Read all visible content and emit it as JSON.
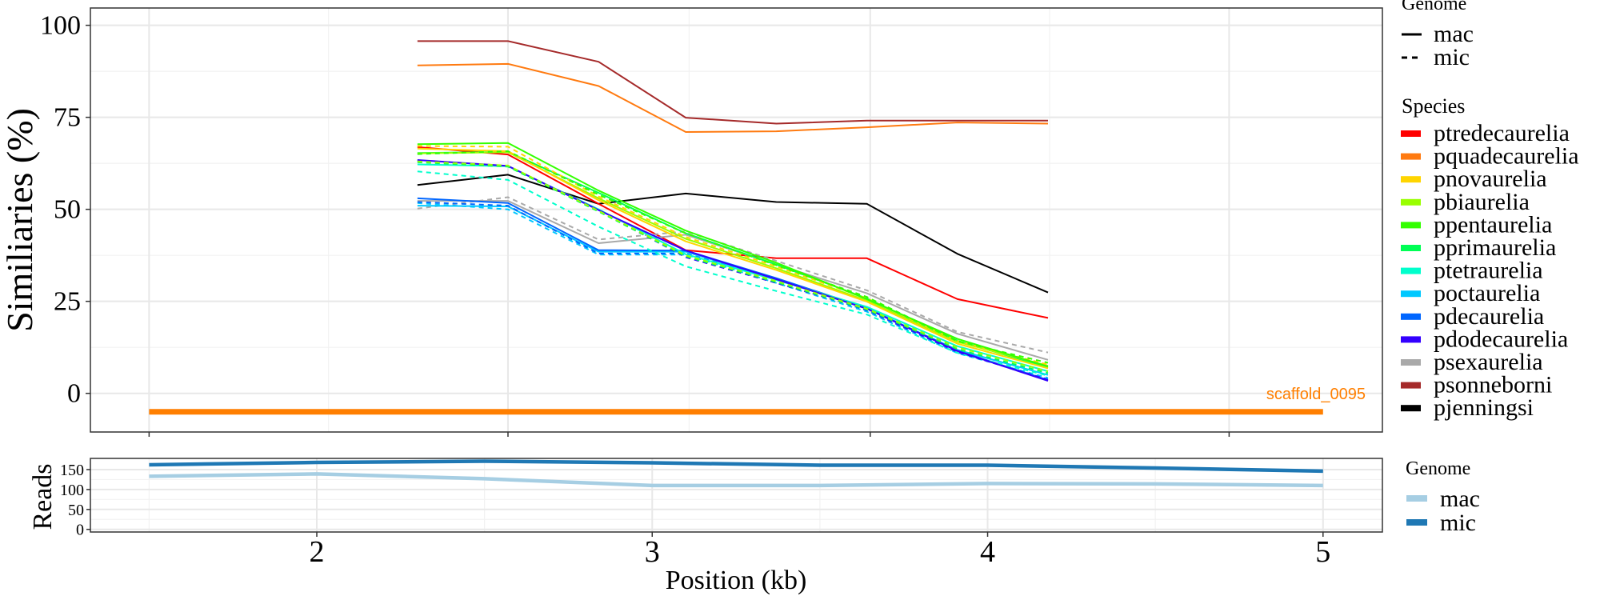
{
  "chart_data": [
    {
      "type": "line",
      "ylabel": "Similiaries (%)",
      "xlabel": "",
      "ylim": [
        -10.5,
        104.7
      ],
      "xlim": [
        1.325,
        5.177
      ],
      "yticks": [
        0,
        25,
        50,
        75,
        100
      ],
      "x_gridlines_unlabeled": [
        1.5,
        2.57,
        3.65,
        4.72
      ],
      "grid": true,
      "x": [
        2.3,
        2.57,
        2.84,
        3.1,
        3.37,
        3.64,
        3.91,
        4.18
      ],
      "annotation": {
        "text": "scaffold_0095",
        "y": -5,
        "x_start": 1.5,
        "x_end": 5.0,
        "color": "#FF7F00"
      },
      "legend_position": "right",
      "linetype_legend": {
        "title": "Genome",
        "items": [
          {
            "label": "mac",
            "dash": "solid"
          },
          {
            "label": "mic",
            "dash": "dashed"
          }
        ]
      },
      "color_legend": {
        "title": "Species",
        "items": [
          {
            "label": "ptredecaurelia",
            "color": "#FF0000"
          },
          {
            "label": "pquadecaurelia",
            "color": "#FF7A10"
          },
          {
            "label": "pnovaurelia",
            "color": "#FFD500"
          },
          {
            "label": "pbiaurelia",
            "color": "#99FF00"
          },
          {
            "label": "ppentaurelia",
            "color": "#33FF00"
          },
          {
            "label": "pprimaurelia",
            "color": "#00FF55"
          },
          {
            "label": "ptetraurelia",
            "color": "#00FFCC"
          },
          {
            "label": "poctaurelia",
            "color": "#00C8FF"
          },
          {
            "label": "pdecaurelia",
            "color": "#0066FF"
          },
          {
            "label": "pdodecaurelia",
            "color": "#3300FF"
          },
          {
            "label": "psexaurelia",
            "color": "#A9A9A9"
          },
          {
            "label": "psonneborni",
            "color": "#A52A2A"
          },
          {
            "label": "pjenningsi",
            "color": "#000000"
          }
        ]
      },
      "series": [
        {
          "species": "psonneborni",
          "genome": "mac",
          "values": [
            95.7,
            95.7,
            90.1,
            74.9,
            73.3,
            74.1,
            74.1,
            74.1
          ]
        },
        {
          "species": "pquadecaurelia",
          "genome": "mac",
          "values": [
            89.1,
            89.5,
            83.5,
            71.0,
            71.2,
            72.3,
            73.6,
            73.3
          ]
        },
        {
          "species": "pjenningsi",
          "genome": "mac",
          "values": [
            56.6,
            59.4,
            51.5,
            54.3,
            52.0,
            51.5,
            37.9,
            27.4
          ]
        },
        {
          "species": "ptredecaurelia",
          "genome": "mac",
          "values": [
            66.9,
            64.9,
            51.5,
            38.9,
            36.7,
            36.7,
            25.6,
            20.5
          ]
        },
        {
          "species": "psexaurelia",
          "genome": "mac",
          "values": [
            52.3,
            52.3,
            40.8,
            43.1,
            35.0,
            27.2,
            16.2,
            9.1
          ]
        },
        {
          "species": "psexaurelia",
          "genome": "mic",
          "values": [
            50.2,
            53.3,
            41.8,
            44.0,
            36.0,
            28.0,
            16.7,
            11.1
          ]
        },
        {
          "species": "poctaurelia",
          "genome": "mac",
          "values": [
            51.0,
            50.8,
            38.5,
            38.5,
            31.0,
            23.0,
            11.8,
            5.0
          ]
        },
        {
          "species": "poctaurelia",
          "genome": "mic",
          "values": [
            51.7,
            50.0,
            37.7,
            37.7,
            30.0,
            22.2,
            10.9,
            4.2
          ]
        },
        {
          "species": "pdecaurelia",
          "genome": "mac",
          "values": [
            53.0,
            51.7,
            38.9,
            38.8,
            31.3,
            23.2,
            11.6,
            3.6
          ]
        },
        {
          "species": "pdecaurelia",
          "genome": "mic",
          "values": [
            52.0,
            51.0,
            38.0,
            38.0,
            30.8,
            22.5,
            11.2,
            3.8
          ]
        },
        {
          "species": "ptetraurelia",
          "genome": "mac",
          "values": [
            62.2,
            61.7,
            50.0,
            37.8,
            30.8,
            23.5,
            12.8,
            6.0
          ]
        },
        {
          "species": "ptetraurelia",
          "genome": "mic",
          "values": [
            60.3,
            58.0,
            45.3,
            34.5,
            27.8,
            21.4,
            11.0,
            4.8
          ]
        },
        {
          "species": "pdodecaurelia",
          "genome": "mac",
          "values": [
            63.4,
            61.8,
            49.8,
            38.8,
            31.0,
            23.0,
            11.5,
            3.4
          ]
        },
        {
          "species": "pdodecaurelia",
          "genome": "mic",
          "values": [
            63.2,
            61.7,
            49.6,
            37.0,
            30.0,
            22.8,
            11.3,
            3.6
          ]
        },
        {
          "species": "pprimaurelia",
          "genome": "mac",
          "values": [
            65.3,
            65.6,
            54.5,
            43.5,
            35.0,
            25.8,
            14.3,
            7.0
          ]
        },
        {
          "species": "pprimaurelia",
          "genome": "mic",
          "values": [
            62.8,
            61.6,
            49.4,
            37.2,
            30.2,
            22.8,
            12.0,
            5.5
          ]
        },
        {
          "species": "pbiaurelia",
          "genome": "mac",
          "values": [
            65.2,
            65.5,
            53.0,
            42.0,
            34.0,
            25.2,
            14.0,
            7.5
          ]
        },
        {
          "species": "pbiaurelia",
          "genome": "mic",
          "values": [
            63.0,
            61.9,
            49.6,
            37.5,
            30.5,
            23.0,
            12.5,
            6.0
          ]
        },
        {
          "species": "pnovaurelia",
          "genome": "mac",
          "values": [
            66.5,
            65.8,
            52.5,
            41.3,
            33.5,
            24.9,
            13.5,
            6.8
          ]
        },
        {
          "species": "pnovaurelia",
          "genome": "mic",
          "values": [
            67.2,
            67.0,
            53.5,
            42.5,
            34.5,
            25.8,
            14.2,
            7.8
          ]
        },
        {
          "species": "ppentaurelia",
          "genome": "mac",
          "values": [
            67.7,
            68.0,
            55.1,
            44.2,
            35.5,
            25.6,
            14.8,
            7.3
          ]
        },
        {
          "species": "ppentaurelia",
          "genome": "mic",
          "values": [
            65.0,
            65.8,
            54.0,
            43.5,
            34.8,
            26.2,
            14.2,
            8.3
          ]
        }
      ]
    },
    {
      "type": "line",
      "ylabel": "Reads",
      "xlabel": "Position (kb)",
      "xlim": [
        1.325,
        5.177
      ],
      "ylim": [
        -6.6,
        178
      ],
      "xticks": [
        2,
        3,
        4,
        5
      ],
      "xtick_labels": [
        "2",
        "3",
        "4",
        "5"
      ],
      "yticks": [
        0,
        50,
        100,
        150
      ],
      "ytick_labels": [
        "0",
        "50",
        "100",
        "150"
      ],
      "grid": true,
      "x": [
        1.5,
        2.0,
        2.5,
        3.0,
        3.5,
        4.0,
        4.5,
        5.0
      ],
      "legend_position": "right",
      "legend": {
        "title": "Genome"
      },
      "series": [
        {
          "name": "mac",
          "color": "#A6CEE3",
          "values": [
            133,
            139,
            127,
            110,
            110,
            115,
            114,
            110
          ]
        },
        {
          "name": "mic",
          "color": "#1F78B4",
          "values": [
            162,
            168,
            171,
            167,
            161,
            161,
            154,
            146
          ]
        }
      ]
    }
  ]
}
